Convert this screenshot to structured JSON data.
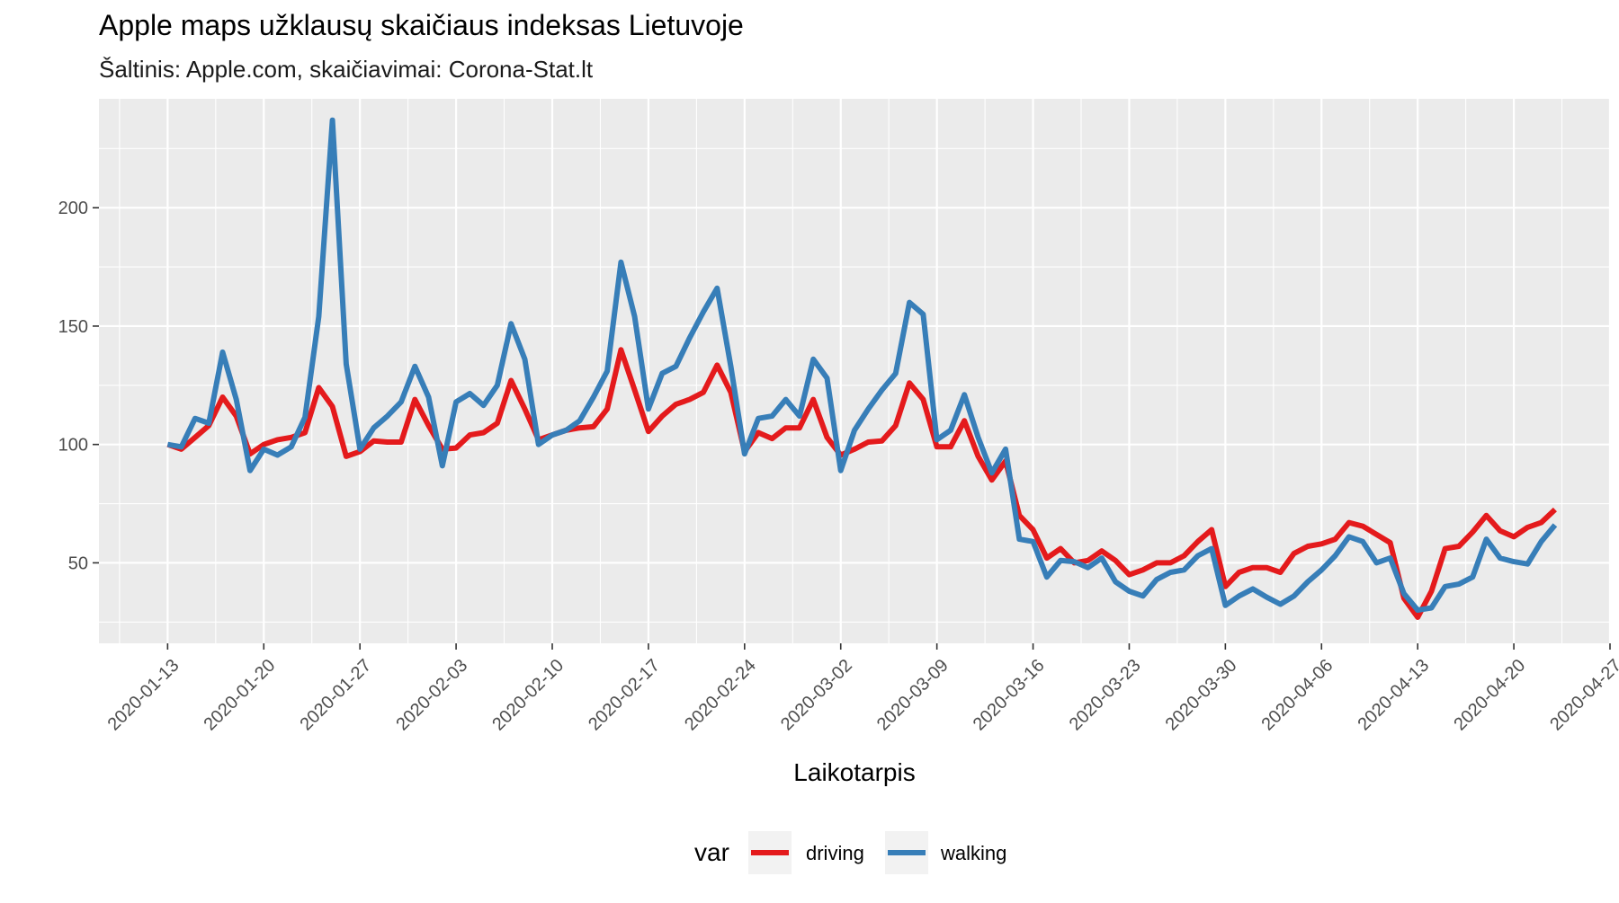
{
  "chart_data": {
    "type": "line",
    "title": "Apple maps užklausų skaičiaus indeksas Lietuvoje",
    "subtitle": "Šaltinis: Apple.com, skaičiavimai: Corona-Stat.lt",
    "xlabel": "Laikotarpis",
    "ylabel": "",
    "x_start": "2020-01-13",
    "x_ticks": [
      "2020-01-13",
      "2020-01-20",
      "2020-01-27",
      "2020-02-03",
      "2020-02-10",
      "2020-02-17",
      "2020-02-24",
      "2020-03-02",
      "2020-03-09",
      "2020-03-16",
      "2020-03-23",
      "2020-03-30",
      "2020-04-06",
      "2020-04-13",
      "2020-04-20",
      "2020-04-27"
    ],
    "xlim": [
      "2020-01-08",
      "2020-04-27"
    ],
    "y_ticks": [
      50,
      100,
      150,
      200
    ],
    "ylim": [
      16,
      246
    ],
    "grid": true,
    "legend": {
      "title": "var",
      "position": "bottom"
    },
    "series": [
      {
        "name": "driving",
        "color": "#e41a1c",
        "values": [
          100,
          98,
          103,
          108,
          120,
          112,
          96,
          100,
          102,
          103,
          105,
          124,
          116,
          95,
          97,
          101.5,
          101,
          101,
          119,
          108,
          98,
          98.5,
          104,
          105,
          109,
          127,
          115,
          102,
          104,
          106,
          107,
          107.5,
          115,
          140,
          123,
          105.5,
          112,
          117,
          119,
          122,
          133.5,
          122,
          97,
          105,
          102.5,
          107,
          107,
          119,
          103,
          95.5,
          98,
          101,
          101.5,
          108,
          126,
          119,
          99,
          99,
          110,
          95,
          85,
          93,
          70,
          64,
          52,
          56,
          50,
          51,
          55,
          51,
          45,
          47,
          50,
          50,
          53,
          59,
          64,
          40,
          46,
          48,
          48,
          46,
          54,
          57,
          58,
          60,
          67,
          65.5,
          62,
          58.5,
          35,
          27,
          38,
          56,
          57,
          63,
          70,
          63.5,
          61,
          65,
          67,
          72.5
        ]
      },
      {
        "name": "walking",
        "color": "#377eb8",
        "values": [
          100,
          99,
          111,
          109,
          139,
          119,
          89,
          98,
          95.5,
          99,
          111.5,
          154,
          237,
          134,
          98,
          107,
          112,
          118,
          133,
          120,
          91,
          118,
          121.5,
          116.5,
          125,
          151,
          136,
          100,
          104,
          106,
          110,
          120,
          131,
          177,
          154,
          115,
          130,
          133,
          145,
          156,
          166,
          133,
          96,
          111,
          112,
          119,
          112,
          136,
          128,
          89,
          106,
          115,
          123,
          130,
          160,
          155,
          102,
          106,
          121,
          103,
          88,
          98,
          60,
          59,
          44,
          51,
          50.5,
          48,
          52,
          42,
          38,
          36,
          43,
          46,
          47,
          53,
          56,
          32,
          36,
          39,
          35.5,
          32.5,
          36,
          42,
          47,
          53,
          61,
          59,
          50,
          52,
          37,
          30,
          31,
          40,
          41,
          44,
          60,
          52,
          50.5,
          49.5,
          59,
          66
        ]
      }
    ]
  }
}
